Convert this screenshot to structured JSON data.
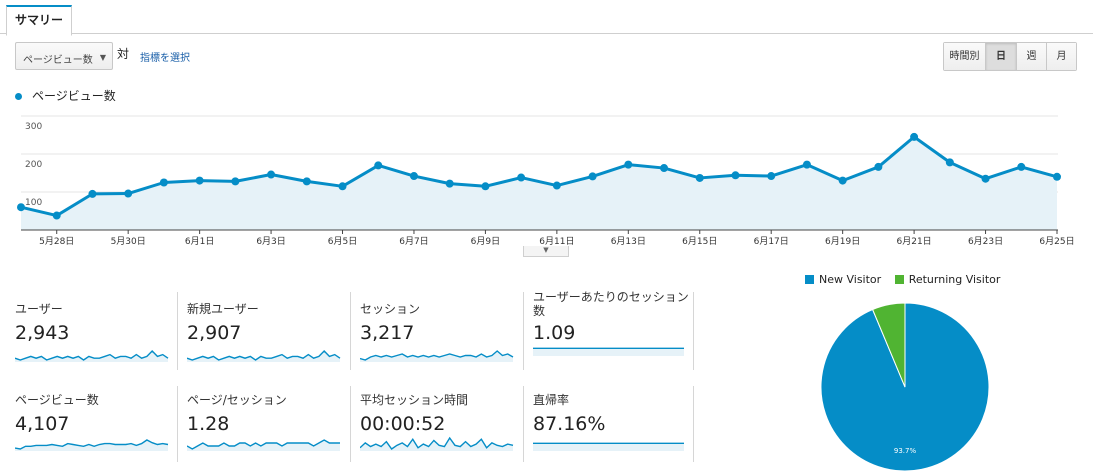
{
  "tab": {
    "label": "サマリー"
  },
  "controls": {
    "metric_dropdown": "ページビュー数",
    "vs_label": "対",
    "select_metric_link": "指標を選択",
    "granularity": [
      {
        "label": "時間別",
        "selected": false
      },
      {
        "label": "日",
        "selected": true
      },
      {
        "label": "週",
        "selected": false
      },
      {
        "label": "月",
        "selected": false
      }
    ]
  },
  "chart_legend": "ページビュー数",
  "colors": {
    "primary": "#058dc7",
    "secondary": "#50b432",
    "fill": "#e6f2f8"
  },
  "chart_data": [
    {
      "type": "area",
      "series": [
        {
          "name": "ページビュー数",
          "values": [
            60,
            38,
            95,
            96,
            125,
            130,
            128,
            146,
            128,
            115,
            170,
            142,
            122,
            115,
            138,
            117,
            141,
            172,
            163,
            137,
            144,
            142,
            172,
            130,
            166,
            245,
            178,
            135,
            166,
            140
          ]
        }
      ],
      "ylim": [
        0,
        300
      ],
      "yticks": [
        100,
        200,
        300
      ],
      "xtick_labels": [
        "5月28日",
        "5月30日",
        "6月1日",
        "6月3日",
        "6月5日",
        "6月7日",
        "6月9日",
        "6月11日",
        "6月13日",
        "6月15日",
        "6月17日",
        "6月19日",
        "6月21日",
        "6月23日",
        "6月25日"
      ],
      "xtick_indices": [
        1,
        3,
        5,
        7,
        9,
        11,
        13,
        15,
        17,
        19,
        21,
        23,
        25,
        27,
        29
      ],
      "grid": true
    },
    {
      "type": "pie",
      "series": [
        {
          "name": "New Visitor",
          "value": 93.7,
          "color": "#058dc7"
        },
        {
          "name": "Returning Visitor",
          "value": 6.3,
          "color": "#50b432"
        }
      ],
      "slice_labels": [
        "93.7%"
      ],
      "legend": "top"
    }
  ],
  "scorecards": [
    {
      "label": "ユーザー",
      "value": "2,943",
      "spark": [
        5,
        4,
        5,
        6,
        5,
        6,
        4,
        5,
        6,
        5,
        6,
        5,
        6,
        4,
        6,
        5,
        5,
        6,
        7,
        5,
        6,
        6,
        5,
        7,
        5,
        6,
        9,
        6,
        7,
        5
      ]
    },
    {
      "label": "新規ユーザー",
      "value": "2,907",
      "spark": [
        5,
        4,
        5,
        6,
        5,
        6,
        4,
        5,
        6,
        5,
        6,
        5,
        6,
        4,
        6,
        5,
        5,
        6,
        7,
        5,
        6,
        6,
        5,
        7,
        5,
        6,
        9,
        6,
        7,
        5
      ]
    },
    {
      "label": "セッション",
      "value": "3,217",
      "spark": [
        4,
        3,
        5,
        6,
        5,
        6,
        5,
        6,
        7,
        5,
        6,
        5,
        6,
        5,
        6,
        5,
        6,
        7,
        6,
        5,
        6,
        6,
        5,
        7,
        5,
        6,
        9,
        6,
        7,
        5
      ]
    },
    {
      "label": "ユーザーあたりのセッション数",
      "value": "1.09",
      "spark": [
        5,
        5,
        5,
        5,
        5,
        5,
        5,
        5,
        5,
        5,
        5,
        5,
        5,
        5,
        5,
        5,
        5,
        5,
        5,
        5,
        5,
        5,
        5,
        5,
        5,
        5,
        5,
        5,
        5,
        5
      ]
    },
    {
      "label": "ページビュー数",
      "value": "4,107",
      "spark": [
        3,
        2,
        5,
        5,
        6,
        6,
        6,
        7,
        6,
        5,
        8,
        7,
        6,
        5,
        7,
        5,
        7,
        8,
        8,
        7,
        7,
        7,
        8,
        6,
        8,
        12,
        9,
        7,
        8,
        7
      ]
    },
    {
      "label": "ページ/セッション",
      "value": "1.28",
      "spark": [
        5,
        4,
        5,
        6,
        5,
        5,
        5,
        6,
        5,
        5,
        6,
        6,
        5,
        6,
        5,
        6,
        6,
        6,
        5,
        6,
        6,
        6,
        6,
        6,
        5,
        6,
        7,
        6,
        6,
        6
      ]
    },
    {
      "label": "平均セッション時間",
      "value": "00:00:52",
      "spark": [
        5,
        9,
        6,
        8,
        6,
        10,
        4,
        7,
        9,
        6,
        12,
        5,
        8,
        6,
        11,
        7,
        6,
        13,
        7,
        6,
        10,
        6,
        8,
        12,
        5,
        9,
        7,
        6,
        8,
        7
      ]
    },
    {
      "label": "直帰率",
      "value": "87.16%",
      "spark": [
        6,
        6,
        6,
        6,
        6,
        6,
        6,
        6,
        6,
        6,
        6,
        6,
        6,
        6,
        6,
        6,
        6,
        6,
        6,
        6,
        6,
        6,
        6,
        6,
        6,
        6,
        6,
        6,
        6,
        6
      ]
    }
  ]
}
